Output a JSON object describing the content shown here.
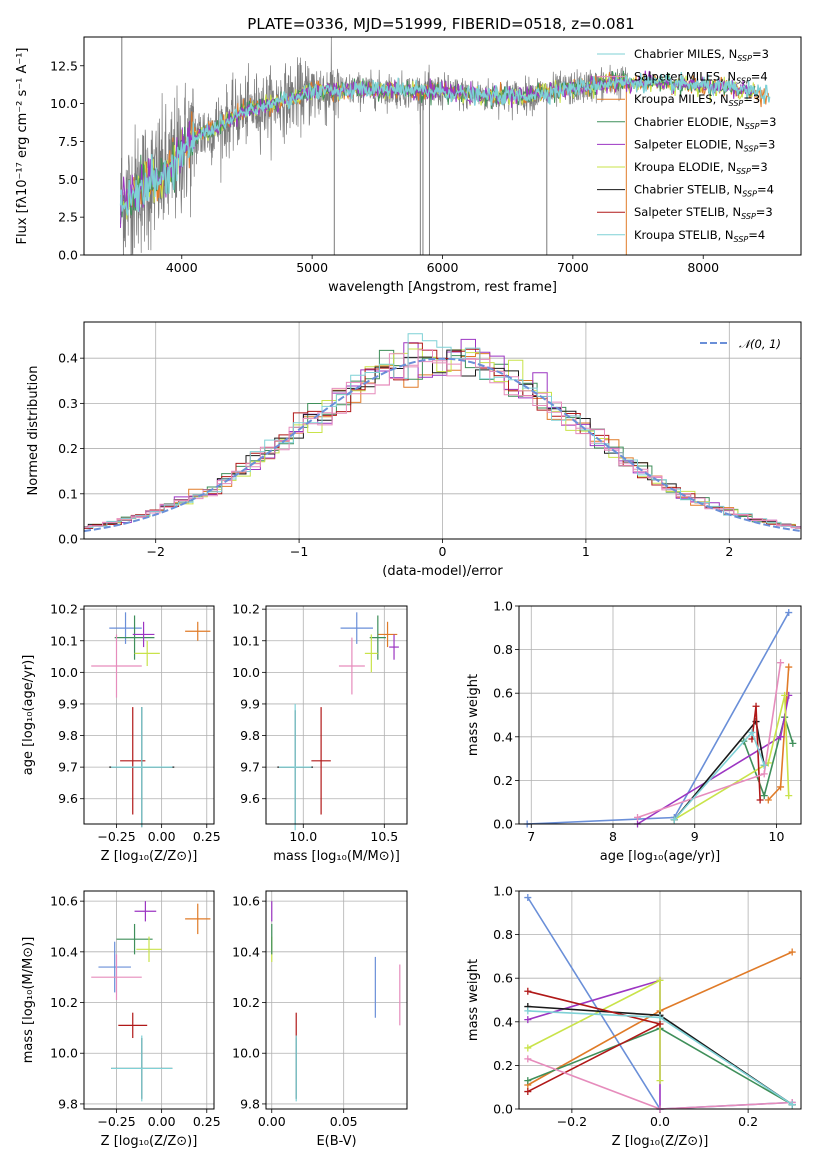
{
  "figure": {
    "title": "PLATE=0336, MJD=51999, FIBERID=0518, z=0.081"
  },
  "colors": [
    "#6a8fd8",
    "#e07b28",
    "#3f8f5a",
    "#9c35c2",
    "#c9e34a",
    "#1a1a1a",
    "#b01818",
    "#e68cbc",
    "#7fd1d6"
  ],
  "chart_data": [
    {
      "id": "spectrum",
      "type": "line",
      "title": "PLATE=0336, MJD=51999, FIBERID=0518, z=0.081",
      "xlabel": "wavelength [Angstrom, rest frame]",
      "ylabel": "Flux [fλ10⁻¹⁷ erg cm⁻² s⁻¹ A⁻¹]",
      "xlim": [
        3250,
        8750
      ],
      "ylim": [
        0,
        14.4
      ],
      "xticks": [
        4000,
        5000,
        6000,
        7000,
        8000
      ],
      "xticklabels": [
        "4000",
        "5000",
        "6000",
        "7000",
        "8000"
      ],
      "yticks": [
        0,
        2.5,
        5,
        7.5,
        10,
        12.5
      ],
      "yticklabels": [
        "0.0",
        "2.5",
        "5.0",
        "7.5",
        "10.0",
        "12.5"
      ],
      "data_range": [
        3530,
        8510
      ],
      "continuum": [
        [
          3530,
          3.3
        ],
        [
          3700,
          4.6
        ],
        [
          3900,
          5.4
        ],
        [
          4000,
          7.0
        ],
        [
          4100,
          7.8
        ],
        [
          4300,
          8.6
        ],
        [
          4500,
          9.6
        ],
        [
          4700,
          10.0
        ],
        [
          5000,
          10.8
        ],
        [
          5300,
          10.9
        ],
        [
          5600,
          10.9
        ],
        [
          6000,
          10.8
        ],
        [
          6300,
          10.5
        ],
        [
          6600,
          10.5
        ],
        [
          7000,
          11.0
        ],
        [
          7300,
          11.4
        ],
        [
          7600,
          11.4
        ],
        [
          8000,
          11.2
        ],
        [
          8300,
          10.9
        ],
        [
          8510,
          10.6
        ]
      ],
      "spikes": [
        [
          3540,
          14.4
        ],
        [
          5170,
          0
        ],
        [
          5830,
          0
        ],
        [
          5850,
          0
        ],
        [
          5900,
          0
        ],
        [
          6800,
          0
        ],
        [
          7410,
          0
        ]
      ],
      "legend": [
        {
          "label": "Chabrier MILES, N",
          "sub": "SSP",
          "value": "=3"
        },
        {
          "label": "Salpeter MILES, N",
          "sub": "SSP",
          "value": "=4"
        },
        {
          "label": "Kroupa MILES, N",
          "sub": "SSP",
          "value": "=3"
        },
        {
          "label": "Chabrier ELODIE, N",
          "sub": "SSP",
          "value": "=3"
        },
        {
          "label": "Salpeter ELODIE, N",
          "sub": "SSP",
          "value": "=3"
        },
        {
          "label": "Kroupa ELODIE, N",
          "sub": "SSP",
          "value": "=3"
        },
        {
          "label": "Chabrier STELIB, N",
          "sub": "SSP",
          "value": "=4"
        },
        {
          "label": "Salpeter STELIB, N",
          "sub": "SSP",
          "value": "=3"
        },
        {
          "label": "Kroupa STELIB, N",
          "sub": "SSP",
          "value": "=4"
        }
      ],
      "legend_placement": "upper-right",
      "grid": false
    },
    {
      "id": "residuals",
      "type": "step-histogram",
      "xlabel": "(data-model)/error",
      "ylabel": "Normed distribution",
      "xlim": [
        -2.5,
        2.5
      ],
      "ylim": [
        0,
        0.48
      ],
      "xticks": [
        -2,
        -1,
        0,
        1,
        2
      ],
      "xticklabels": [
        "−2",
        "−1",
        "0",
        "1",
        "2"
      ],
      "yticks": [
        0,
        0.1,
        0.2,
        0.3,
        0.4
      ],
      "yticklabels": [
        "0.0",
        "0.1",
        "0.2",
        "0.3",
        "0.4"
      ],
      "bin_width": 0.1,
      "normal_label": "𝒩(0, 1)",
      "legend_placement": "upper-right",
      "grid": true
    },
    {
      "id": "age-vs-z",
      "type": "errorbar",
      "xlabel": "Z [log₁₀(Z/Z⊙)]",
      "ylabel": "age  [log₁₀(age/yr)]",
      "xlim": [
        -0.43,
        0.29
      ],
      "ylim": [
        9.52,
        10.21
      ],
      "xticks": [
        -0.25,
        0,
        0.25
      ],
      "xticklabels": [
        "−0.25",
        "0.00",
        "0.25"
      ],
      "yticks": [
        9.6,
        9.7,
        9.8,
        9.9,
        10.0,
        10.1,
        10.2
      ],
      "yticklabels": [
        "9.6",
        "9.7",
        "9.8",
        "9.9",
        "10.0",
        "10.1",
        "10.2"
      ],
      "points": [
        {
          "x": -0.2,
          "y": 10.14,
          "xerr": 0.09,
          "yerr": 0.05,
          "c": 0
        },
        {
          "x": 0.2,
          "y": 10.13,
          "xerr": 0.07,
          "yerr": 0.03,
          "c": 1
        },
        {
          "x": -0.15,
          "y": 10.11,
          "xerr": 0.11,
          "yerr": 0.07,
          "c": 2
        },
        {
          "x": -0.1,
          "y": 10.12,
          "xerr": 0.06,
          "yerr": 0.04,
          "c": 3
        },
        {
          "x": -0.08,
          "y": 10.06,
          "xerr": 0.07,
          "yerr": 0.04,
          "c": 4
        },
        {
          "x": -0.25,
          "y": 10.02,
          "xerr": 0.14,
          "yerr": 0.1,
          "c": 7
        },
        {
          "x": -0.16,
          "y": 9.72,
          "xerr": 0.07,
          "yerr": 0.17,
          "c": 6
        },
        {
          "x": -0.11,
          "y": 9.7,
          "xerr": 0.18,
          "yerr": 0.19,
          "c": 5
        },
        {
          "x": -0.11,
          "y": 9.7,
          "xerr": 0.17,
          "yerr": 0.19,
          "c": 8
        }
      ],
      "grid": true
    },
    {
      "id": "age-vs-mass",
      "type": "errorbar",
      "xlabel": "mass [log₁₀(M/M⊙)]",
      "ylabel": "",
      "xlim": [
        9.77,
        10.64
      ],
      "ylim": [
        9.52,
        10.21
      ],
      "xticks": [
        10.0,
        10.5
      ],
      "xticklabels": [
        "10.0",
        "10.5"
      ],
      "yticks": [
        9.6,
        9.7,
        9.8,
        9.9,
        10.0,
        10.1,
        10.2
      ],
      "yticklabels": [
        "9.6",
        "9.7",
        "9.8",
        "9.9",
        "10.0",
        "10.1",
        "10.2"
      ],
      "points": [
        {
          "x": 10.33,
          "y": 10.14,
          "xerr": 0.1,
          "yerr": 0.05,
          "c": 0
        },
        {
          "x": 10.52,
          "y": 10.12,
          "xerr": 0.06,
          "yerr": 0.04,
          "c": 1
        },
        {
          "x": 10.46,
          "y": 10.11,
          "xerr": 0.05,
          "yerr": 0.07,
          "c": 2
        },
        {
          "x": 10.56,
          "y": 10.08,
          "xerr": 0.03,
          "yerr": 0.04,
          "c": 3
        },
        {
          "x": 10.42,
          "y": 10.06,
          "xerr": 0.04,
          "yerr": 0.06,
          "c": 4
        },
        {
          "x": 10.3,
          "y": 10.02,
          "xerr": 0.08,
          "yerr": 0.09,
          "c": 7
        },
        {
          "x": 10.11,
          "y": 9.72,
          "xerr": 0.06,
          "yerr": 0.17,
          "c": 6
        },
        {
          "x": 9.95,
          "y": 9.7,
          "xerr": 0.11,
          "yerr": 0.18,
          "c": 5
        },
        {
          "x": 9.95,
          "y": 9.7,
          "xerr": 0.1,
          "yerr": 0.2,
          "c": 8
        }
      ],
      "grid": true
    },
    {
      "id": "weight-vs-age",
      "type": "line",
      "xlabel": "age  [log₁₀(age/yr)]",
      "ylabel": "mass weight",
      "xlim": [
        6.85,
        10.3
      ],
      "ylim": [
        0,
        1
      ],
      "xticks": [
        7,
        8,
        9,
        10
      ],
      "xticklabels": [
        "7",
        "8",
        "9",
        "10"
      ],
      "yticks": [
        0,
        0.2,
        0.4,
        0.6,
        0.8,
        1.0
      ],
      "yticklabels": [
        "0.0",
        "0.2",
        "0.4",
        "0.6",
        "0.8",
        "1.0"
      ],
      "series": [
        {
          "c": 0,
          "x": [
            6.95,
            8.75,
            10.15
          ],
          "y": [
            0.0,
            0.03,
            0.97
          ]
        },
        {
          "c": 1,
          "x": [
            9.9,
            10.05,
            10.15
          ],
          "y": [
            0.11,
            0.17,
            0.72
          ]
        },
        {
          "c": 2,
          "x": [
            9.6,
            9.85,
            10.1,
            10.2
          ],
          "y": [
            0.38,
            0.13,
            0.49,
            0.37
          ]
        },
        {
          "c": 3,
          "x": [
            8.3,
            10.05,
            10.15
          ],
          "y": [
            0.0,
            0.4,
            0.59
          ]
        },
        {
          "c": 4,
          "x": [
            8.75,
            9.9,
            10.1,
            10.15
          ],
          "y": [
            0.02,
            0.28,
            0.59,
            0.13
          ]
        },
        {
          "c": 5,
          "x": [
            8.75,
            9.75,
            9.85
          ],
          "y": [
            0.02,
            0.47,
            0.27
          ]
        },
        {
          "c": 6,
          "x": [
            9.7,
            9.75,
            9.8
          ],
          "y": [
            0.39,
            0.54,
            0.11
          ]
        },
        {
          "c": 7,
          "x": [
            8.3,
            9.85,
            10.05
          ],
          "y": [
            0.03,
            0.23,
            0.74
          ]
        },
        {
          "c": 8,
          "x": [
            8.75,
            9.7,
            9.85
          ],
          "y": [
            0.02,
            0.42,
            0.27
          ]
        }
      ],
      "grid": true
    },
    {
      "id": "mass-vs-z",
      "type": "errorbar",
      "xlabel": "Z [log₁₀(Z/Z⊙)]",
      "ylabel": "mass [log₁₀(M/M⊙)]",
      "xlim": [
        -0.43,
        0.29
      ],
      "ylim": [
        9.78,
        10.64
      ],
      "xticks": [
        -0.25,
        0,
        0.25
      ],
      "xticklabels": [
        "−0.25",
        "0.00",
        "0.25"
      ],
      "yticks": [
        9.8,
        10.0,
        10.2,
        10.4,
        10.6
      ],
      "yticklabels": [
        "9.8",
        "10.0",
        "10.2",
        "10.4",
        "10.6"
      ],
      "points": [
        {
          "x": -0.09,
          "y": 10.56,
          "xerr": 0.06,
          "yerr": 0.04,
          "c": 3
        },
        {
          "x": 0.2,
          "y": 10.53,
          "xerr": 0.07,
          "yerr": 0.06,
          "c": 1
        },
        {
          "x": -0.15,
          "y": 10.45,
          "xerr": 0.1,
          "yerr": 0.06,
          "c": 2
        },
        {
          "x": -0.07,
          "y": 10.41,
          "xerr": 0.07,
          "yerr": 0.05,
          "c": 4
        },
        {
          "x": -0.26,
          "y": 10.34,
          "xerr": 0.09,
          "yerr": 0.1,
          "c": 0
        },
        {
          "x": -0.25,
          "y": 10.3,
          "xerr": 0.14,
          "yerr": 0.09,
          "c": 7
        },
        {
          "x": -0.16,
          "y": 10.11,
          "xerr": 0.08,
          "yerr": 0.05,
          "c": 6
        },
        {
          "x": -0.11,
          "y": 9.94,
          "xerr": 0.17,
          "yerr": 0.12,
          "c": 5
        },
        {
          "x": -0.11,
          "y": 9.94,
          "xerr": 0.17,
          "yerr": 0.13,
          "c": 8
        }
      ],
      "grid": true
    },
    {
      "id": "mass-vs-ebv",
      "type": "errorbar",
      "xlabel": "E(B-V)",
      "ylabel": "",
      "xlim": [
        -0.004,
        0.094
      ],
      "ylim": [
        9.78,
        10.64
      ],
      "xticks": [
        0,
        0.05
      ],
      "xticklabels": [
        "0.00",
        "0.05"
      ],
      "yticks": [
        9.8,
        10.0,
        10.2,
        10.4,
        10.6
      ],
      "yticklabels": [
        "9.8",
        "10.0",
        "10.2",
        "10.4",
        "10.6"
      ],
      "points": [
        {
          "x": 0.0,
          "y": 10.56,
          "xerr": 0,
          "yerr": 0.04,
          "c": 3
        },
        {
          "x": 0.0,
          "y": 10.41,
          "xerr": 0,
          "yerr": 0.05,
          "c": 4
        },
        {
          "x": 0.0,
          "y": 10.45,
          "xerr": 0,
          "yerr": 0.06,
          "c": 2
        },
        {
          "x": 0.072,
          "y": 10.26,
          "xerr": 0,
          "yerr": 0.12,
          "c": 0
        },
        {
          "x": 0.089,
          "y": 10.23,
          "xerr": 0,
          "yerr": 0.12,
          "c": 7
        },
        {
          "x": 0.017,
          "y": 10.11,
          "xerr": 0,
          "yerr": 0.05,
          "c": 6
        },
        {
          "x": 0.017,
          "y": 9.94,
          "xerr": 0,
          "yerr": 0.12,
          "c": 5
        },
        {
          "x": 0.017,
          "y": 9.94,
          "xerr": 0,
          "yerr": 0.13,
          "c": 8
        }
      ],
      "grid": true
    },
    {
      "id": "weight-vs-z",
      "type": "line",
      "xlabel": "Z [log₁₀(Z/Z⊙)]",
      "ylabel": "mass weight",
      "xlim": [
        -0.32,
        0.32
      ],
      "ylim": [
        0,
        1
      ],
      "xticks": [
        -0.2,
        0,
        0.2
      ],
      "xticklabels": [
        "−0.2",
        "0.0",
        "0.2"
      ],
      "yticks": [
        0,
        0.2,
        0.4,
        0.6,
        0.8,
        1.0
      ],
      "yticklabels": [
        "0.0",
        "0.2",
        "0.4",
        "0.6",
        "0.8",
        "1.0"
      ],
      "series": [
        {
          "c": 0,
          "x": [
            -0.3,
            0.0,
            0.3
          ],
          "y": [
            0.97,
            0.0,
            0.03
          ]
        },
        {
          "c": 1,
          "x": [
            -0.3,
            0.0,
            0.3
          ],
          "y": [
            0.11,
            0.45,
            0.72
          ]
        },
        {
          "c": 2,
          "x": [
            -0.3,
            0.0,
            0.3
          ],
          "y": [
            0.13,
            0.37,
            0.02
          ]
        },
        {
          "c": 3,
          "x": [
            -0.3,
            0.0,
            0.0
          ],
          "y": [
            0.41,
            0.59,
            0.0
          ]
        },
        {
          "c": 4,
          "x": [
            -0.3,
            0.0,
            0.0
          ],
          "y": [
            0.28,
            0.59,
            0.13
          ]
        },
        {
          "c": 5,
          "x": [
            -0.3,
            0.0,
            0.3
          ],
          "y": [
            0.47,
            0.43,
            0.02
          ]
        },
        {
          "c": 6,
          "x": [
            -0.3,
            0.0,
            -0.3
          ],
          "y": [
            0.54,
            0.39,
            0.08
          ]
        },
        {
          "c": 7,
          "x": [
            -0.3,
            0.0,
            0.3
          ],
          "y": [
            0.23,
            0.0,
            0.03
          ]
        },
        {
          "c": 8,
          "x": [
            -0.3,
            0.0,
            0.3
          ],
          "y": [
            0.45,
            0.42,
            0.02
          ]
        }
      ],
      "grid": true
    }
  ]
}
